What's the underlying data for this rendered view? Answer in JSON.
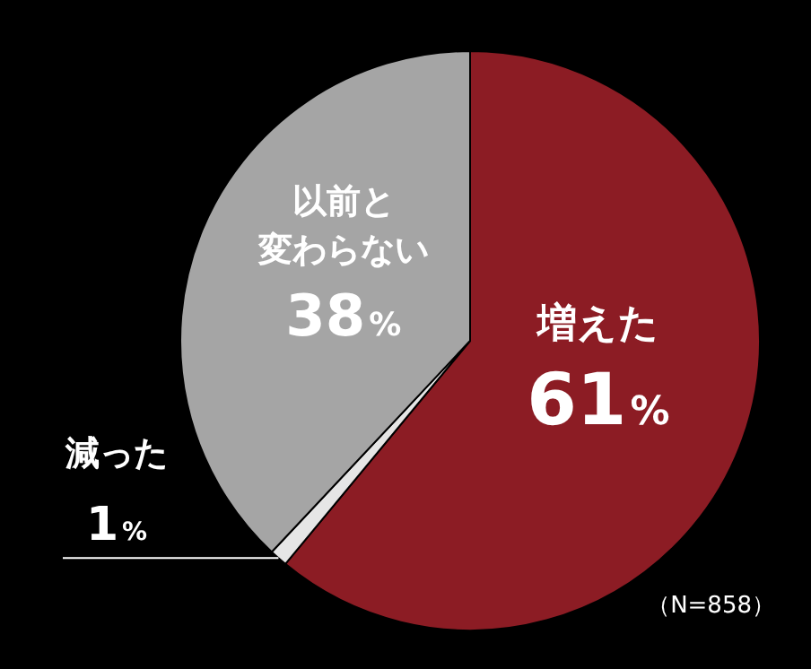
{
  "chart_data": {
    "type": "pie",
    "categories": [
      "増えた",
      "減った",
      "以前と変わらない"
    ],
    "values": [
      61,
      1,
      38
    ],
    "colors": [
      "#8c1c24",
      "#e6e6e6",
      "#a5a5a5"
    ],
    "value_labels": [
      "61%",
      "1%",
      "38%"
    ],
    "annotations": [
      "（N=858）"
    ]
  }
}
